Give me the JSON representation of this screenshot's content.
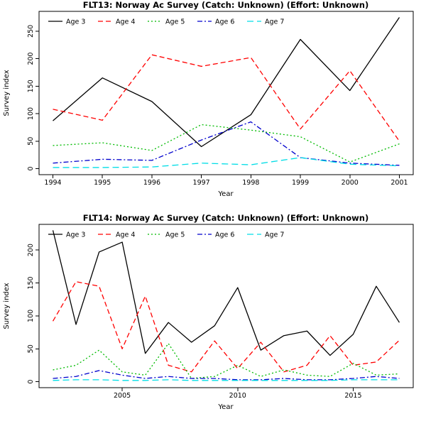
{
  "page": {
    "background": "#ffffff"
  },
  "chart_data": [
    {
      "type": "line",
      "title": "FLT13: Norway Ac Survey (Catch: Unknown) (Effort: Unknown)",
      "xlabel": "Year",
      "ylabel": "Survey index",
      "x": [
        1994,
        1995,
        1996,
        1997,
        1998,
        1999,
        2000,
        2001
      ],
      "xlim": [
        1993.72,
        2001.28
      ],
      "ylim": [
        -11,
        286
      ],
      "xticks": [
        1994,
        1995,
        1996,
        1997,
        1998,
        1999,
        2000,
        2001
      ],
      "yticks": [
        0,
        50,
        100,
        150,
        200,
        250
      ],
      "grid": false,
      "legend_position": "top-left-horizontal",
      "series": [
        {
          "name": "Age 3",
          "color": "#000000",
          "dash": "solid",
          "values": [
            87,
            165,
            122,
            40,
            98,
            235,
            142,
            275
          ]
        },
        {
          "name": "Age 4",
          "color": "#FF0000",
          "dash": "dashed",
          "values": [
            108,
            88,
            207,
            186,
            202,
            72,
            178,
            50
          ]
        },
        {
          "name": "Age 5",
          "color": "#00BB00",
          "dash": "dotted",
          "values": [
            42,
            47,
            33,
            80,
            70,
            58,
            12,
            45
          ]
        },
        {
          "name": "Age 6",
          "color": "#0000CD",
          "dash": "dashdot",
          "values": [
            10,
            17,
            15,
            52,
            85,
            20,
            10,
            6
          ]
        },
        {
          "name": "Age 7",
          "color": "#00DDE6",
          "dash": "longdash",
          "values": [
            2,
            2,
            3,
            10,
            7,
            20,
            8,
            5
          ]
        }
      ]
    },
    {
      "type": "line",
      "title": "FLT14: Norway Ac Survey (Catch: Unknown) (Effort: Unknown)",
      "xlabel": "Year",
      "ylabel": "Survey index",
      "x": [
        2002,
        2003,
        2004,
        2005,
        2006,
        2007,
        2008,
        2009,
        2010,
        2011,
        2012,
        2013,
        2014,
        2015,
        2016,
        2017
      ],
      "xlim": [
        2001.4,
        2017.6
      ],
      "ylim": [
        -9,
        239
      ],
      "xticks": [
        2005,
        2010,
        2015
      ],
      "yticks": [
        0,
        50,
        100,
        150,
        200
      ],
      "grid": false,
      "legend_position": "top-left-horizontal",
      "series": [
        {
          "name": "Age 3",
          "color": "#000000",
          "dash": "solid",
          "values": [
            230,
            87,
            197,
            212,
            43,
            90,
            60,
            85,
            143,
            48,
            70,
            77,
            40,
            72,
            145,
            90
          ]
        },
        {
          "name": "Age 4",
          "color": "#FF0000",
          "dash": "dashed",
          "values": [
            92,
            152,
            145,
            50,
            130,
            25,
            15,
            62,
            20,
            60,
            15,
            25,
            70,
            25,
            30,
            63
          ]
        },
        {
          "name": "Age 5",
          "color": "#00BB00",
          "dash": "dotted",
          "values": [
            18,
            25,
            48,
            15,
            10,
            58,
            5,
            8,
            25,
            8,
            18,
            10,
            8,
            28,
            10,
            12
          ]
        },
        {
          "name": "Age 6",
          "color": "#0000CD",
          "dash": "dashdot",
          "values": [
            5,
            8,
            17,
            10,
            5,
            8,
            5,
            5,
            3,
            3,
            5,
            3,
            3,
            5,
            8,
            5
          ]
        },
        {
          "name": "Age 7",
          "color": "#00DDE6",
          "dash": "longdash",
          "values": [
            2,
            3,
            3,
            2,
            2,
            3,
            2,
            2,
            2,
            2,
            2,
            2,
            2,
            3,
            3,
            3
          ]
        }
      ]
    }
  ]
}
